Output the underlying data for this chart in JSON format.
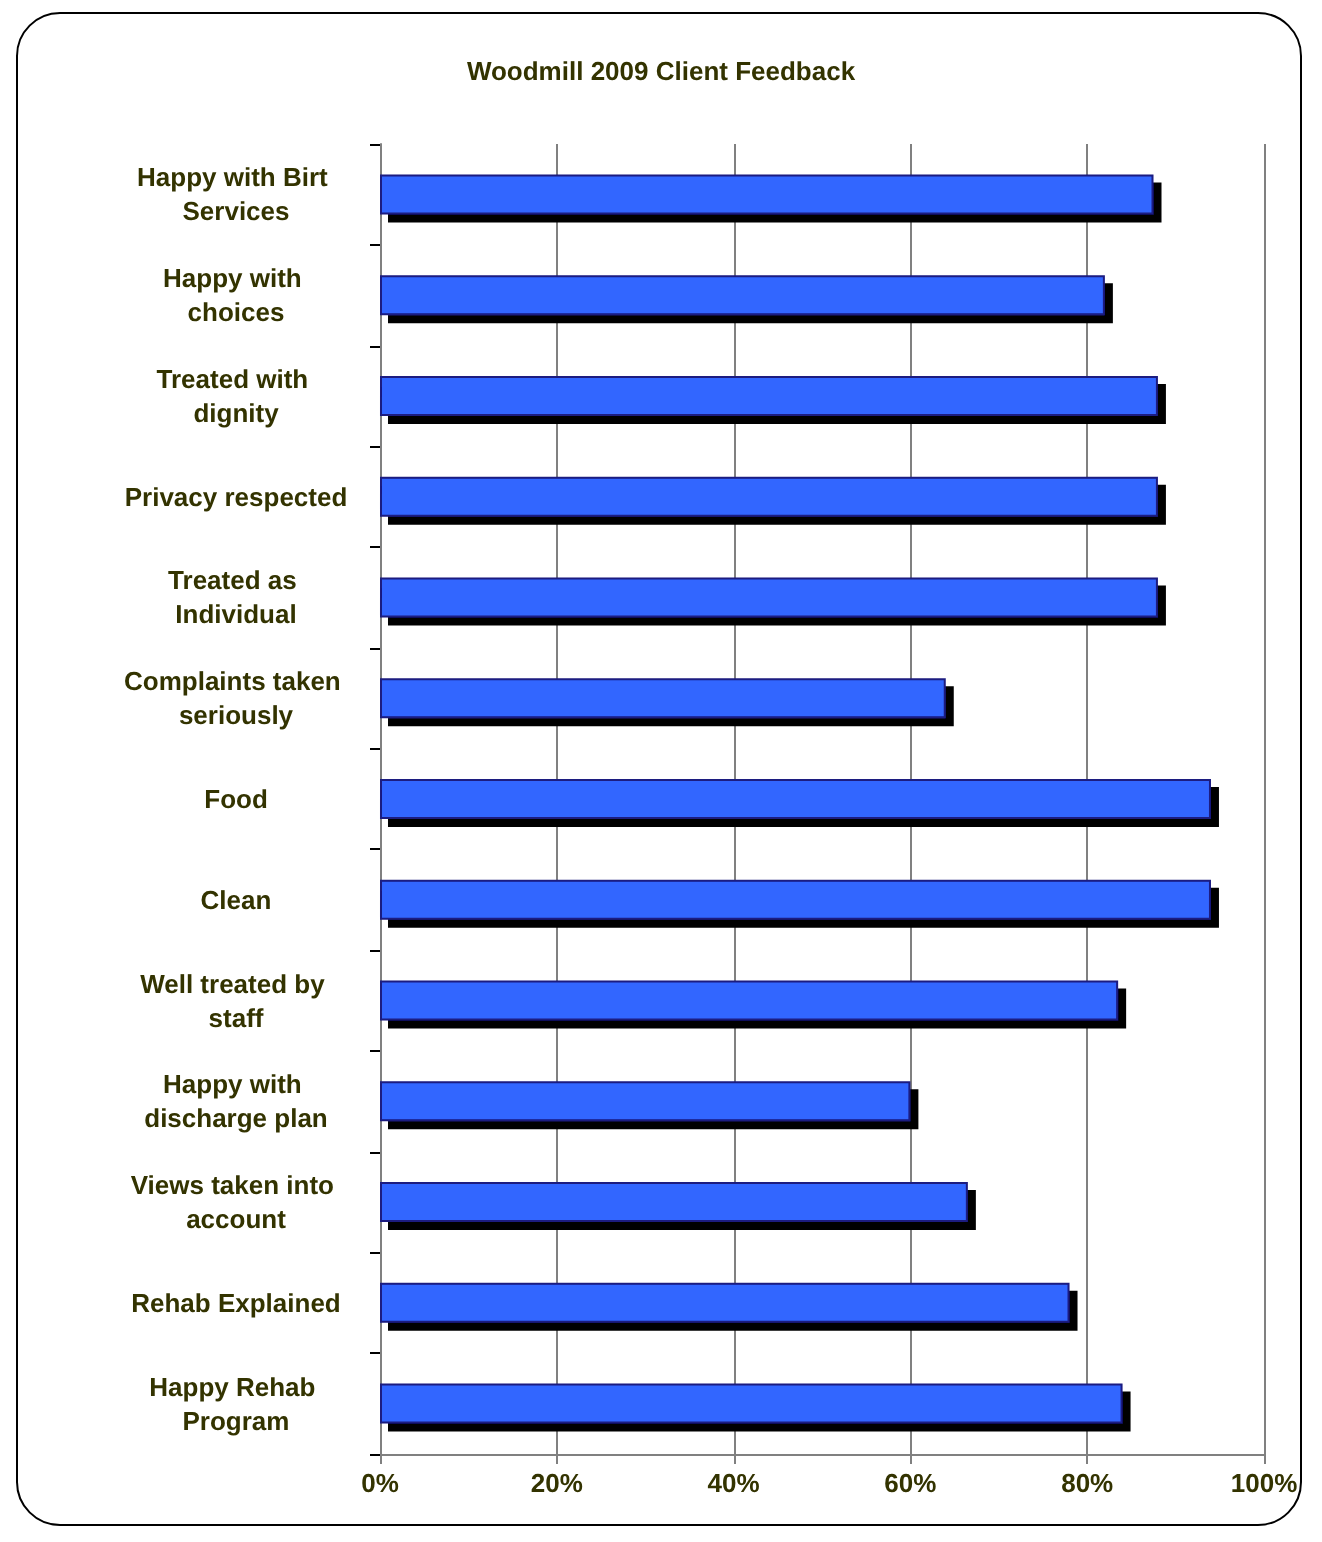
{
  "chart_data": {
    "type": "bar",
    "orientation": "horizontal",
    "title": "Woodmill 2009 Client Feedback",
    "categories": [
      "Happy with Birt Services",
      "Happy with choices",
      "Treated with dignity",
      "Privacy respected",
      "Treated as Individual",
      "Complaints taken seriously",
      "Food",
      "Clean",
      "Well treated by staff",
      "Happy with discharge plan",
      "Views taken into account",
      "Rehab Explained",
      "Happy Rehab Program"
    ],
    "values": [
      87.5,
      82,
      88,
      88,
      88,
      64,
      94,
      94,
      83.5,
      60,
      66.5,
      78,
      84
    ],
    "color": "#3366ff",
    "xlim": [
      0,
      100
    ],
    "xticks": [
      {
        "value": 0,
        "label": "0%"
      },
      {
        "value": 20,
        "label": "20%"
      },
      {
        "value": 40,
        "label": "40%"
      },
      {
        "value": 60,
        "label": "60%"
      },
      {
        "value": 80,
        "label": "80%"
      },
      {
        "value": 100,
        "label": "100%"
      }
    ],
    "grid": "x"
  }
}
